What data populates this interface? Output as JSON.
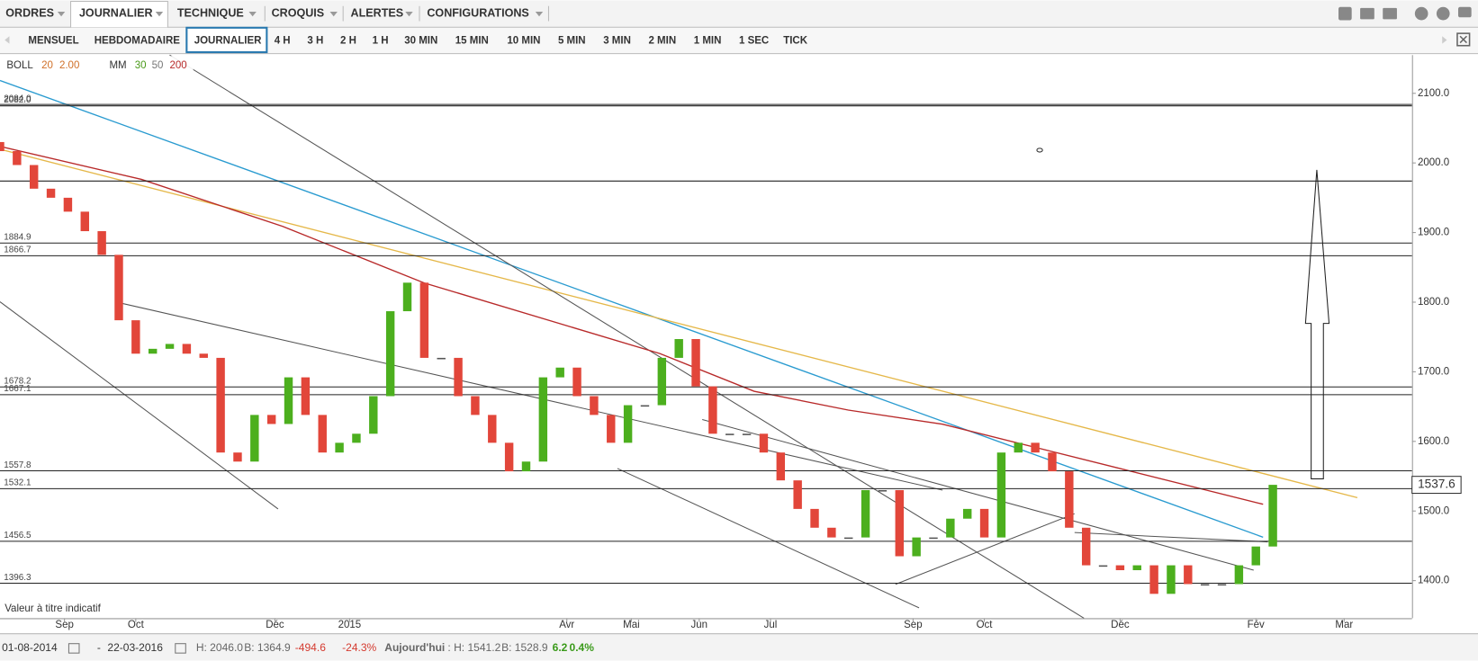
{
  "menu": {
    "items": [
      "ORDRES",
      "JOURNALIER",
      "TECHNIQUE",
      "CROQUIS",
      "ALERTES",
      "CONFIGURATIONS"
    ]
  },
  "timeframes": [
    "MENSUEL",
    "HEBDOMADAIRE",
    "JOURNALIER",
    "4 H",
    "3 H",
    "2 H",
    "1 H",
    "30 MIN",
    "15 MIN",
    "10 MIN",
    "5 MIN",
    "3 MIN",
    "2 MIN",
    "1 MIN",
    "1 SEC",
    "TICK"
  ],
  "legend": {
    "boll": {
      "name": "BOLL",
      "period": "20",
      "width": "2.00"
    },
    "mm": {
      "name": "MM",
      "periods": [
        "30",
        "50",
        "200"
      ]
    }
  },
  "note": "Valeur à titre indicatif",
  "chart_data": {
    "type": "candlestick",
    "x": [
      0,
      5,
      10,
      15,
      20,
      25,
      30,
      35,
      40,
      45,
      50,
      55,
      60,
      65,
      70,
      75,
      80,
      85,
      90,
      95,
      100,
      105,
      110,
      115,
      120,
      125,
      130,
      135,
      140,
      145,
      150,
      155,
      160,
      165,
      170,
      175,
      180,
      185,
      190,
      195,
      200,
      205,
      210,
      215,
      220,
      225,
      230,
      235,
      240,
      245,
      250,
      255,
      260,
      265,
      270,
      275,
      280,
      285,
      290,
      295,
      300,
      305,
      310,
      315,
      320,
      325,
      330,
      335,
      340,
      345,
      350,
      355,
      360,
      365,
      370,
      375
    ],
    "open": [
      2030,
      2017,
      1997,
      1963,
      1950,
      1930,
      1902,
      1868,
      1774,
      1726,
      1733,
      1740,
      1726,
      1720,
      1584,
      1571,
      1638,
      1625,
      1692,
      1638,
      1584,
      1598,
      1611,
      1665,
      1787,
      1828,
      1720,
      1720,
      1665,
      1638,
      1598,
      1557,
      1571,
      1692,
      1706,
      1665,
      1638,
      1598,
      1652,
      1652,
      1720,
      1747,
      1679,
      1611,
      1611,
      1611,
      1584,
      1544,
      1503,
      1476,
      1462,
      1462,
      1530,
      1530,
      1435,
      1462,
      1462,
      1489,
      1503,
      1462,
      1584,
      1598,
      1584,
      1557,
      1476,
      1422,
      1422,
      1415,
      1422,
      1381,
      1422,
      1395,
      1395,
      1395,
      1422,
      1449
    ],
    "close": [
      2017,
      1997,
      1963,
      1950,
      1930,
      1902,
      1868,
      1774,
      1726,
      1733,
      1740,
      1726,
      1720,
      1584,
      1571,
      1638,
      1625,
      1692,
      1638,
      1584,
      1598,
      1611,
      1665,
      1787,
      1828,
      1720,
      1720,
      1665,
      1638,
      1598,
      1557,
      1571,
      1692,
      1706,
      1665,
      1638,
      1598,
      1652,
      1652,
      1720,
      1747,
      1679,
      1611,
      1611,
      1611,
      1584,
      1544,
      1503,
      1476,
      1462,
      1462,
      1530,
      1530,
      1435,
      1462,
      1462,
      1489,
      1503,
      1462,
      1584,
      1598,
      1584,
      1557,
      1476,
      1422,
      1422,
      1415,
      1422,
      1381,
      1422,
      1395,
      1395,
      1395,
      1422,
      1449,
      1537.6
    ],
    "up_color": "#4caf1e",
    "down_color": "#e2463a",
    "xlim": [
      0,
      416
    ],
    "xticks": [
      {
        "value": 19,
        "label": "Sep"
      },
      {
        "value": 40,
        "label": "Oct"
      },
      {
        "value": 81,
        "label": "Déc"
      },
      {
        "value": 103,
        "label": "2015"
      },
      {
        "value": 167,
        "label": "Avr"
      },
      {
        "value": 186,
        "label": "Mai"
      },
      {
        "value": 206,
        "label": "Jun"
      },
      {
        "value": 227,
        "label": "Jul"
      },
      {
        "value": 269,
        "label": "Sep"
      },
      {
        "value": 290,
        "label": "Oct"
      },
      {
        "value": 330,
        "label": "Déc"
      },
      {
        "value": 370,
        "label": "Fév"
      },
      {
        "value": 396,
        "label": "Mar"
      }
    ],
    "ylim": [
      1346,
      2155
    ],
    "yticks": [
      {
        "value": 1400,
        "label": "1400.0"
      },
      {
        "value": 1500,
        "label": "1500.0"
      },
      {
        "value": 1600,
        "label": "1600.0"
      },
      {
        "value": 1700,
        "label": "1700.0"
      },
      {
        "value": 1800,
        "label": "1800.0"
      },
      {
        "value": 1900,
        "label": "1900.0"
      },
      {
        "value": 2000,
        "label": "2000.0"
      },
      {
        "value": 2100,
        "label": "2100.0"
      }
    ],
    "levels": [
      {
        "value": 2084,
        "label": "2084.0"
      },
      {
        "value": 2082,
        "label": "2082.0"
      },
      {
        "value": 1974,
        "label": null
      },
      {
        "value": 1884.9,
        "label": "1884.9"
      },
      {
        "value": 1866.7,
        "label": "1866.7"
      },
      {
        "value": 1678.2,
        "label": "1678.2"
      },
      {
        "value": 1667.1,
        "label": "1667.1"
      },
      {
        "value": 1557.8,
        "label": "1557.8"
      },
      {
        "value": 1532.1,
        "label": "1532.1"
      },
      {
        "value": 1456.5,
        "label": "1456.5"
      },
      {
        "value": 1396.3,
        "label": "1396.3"
      }
    ],
    "last_price": {
      "value": 1537.6,
      "label": "1537.6"
    }
  },
  "status": {
    "from": "01-08-2014",
    "dash": "-",
    "to": "22-03-2016",
    "high": "H: 2046.0",
    "low": "B: 1364.9",
    "change": "-494.6",
    "change_pct": "-24.3%",
    "today_label": "Aujourd'hui",
    "today_high": ": H: 1541.2",
    "today_low": "B: 1528.9",
    "today_change": "6.2",
    "today_pct": "0.4%"
  }
}
